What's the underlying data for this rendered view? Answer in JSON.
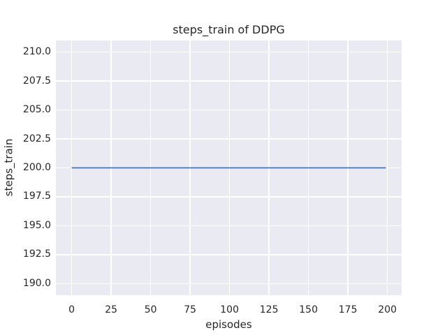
{
  "window": {
    "background": "#ffffff"
  },
  "chart_data": {
    "type": "line",
    "title": "steps_train of DDPG",
    "xlabel": "episodes",
    "ylabel": "steps_train",
    "xlim": [
      -10,
      209
    ],
    "ylim": [
      189,
      211
    ],
    "xticks": [
      0,
      25,
      50,
      75,
      100,
      125,
      150,
      175,
      200
    ],
    "xtick_labels": [
      "0",
      "25",
      "50",
      "75",
      "100",
      "125",
      "150",
      "175",
      "200"
    ],
    "yticks": [
      190.0,
      192.5,
      195.0,
      197.5,
      200.0,
      202.5,
      205.0,
      207.5,
      210.0
    ],
    "ytick_labels": [
      "190.0",
      "192.5",
      "195.0",
      "197.5",
      "200.0",
      "202.5",
      "205.0",
      "207.5",
      "210.0"
    ],
    "grid": true,
    "legend_position": "none",
    "series": [
      {
        "name": "steps_train",
        "color": "#4c72b0",
        "line_width": 1.8,
        "x": [
          0,
          199
        ],
        "y": [
          200,
          200
        ]
      }
    ],
    "style": {
      "plot_background": "#eaeaf2",
      "grid_color": "#ffffff",
      "text_color": "#262626"
    }
  }
}
